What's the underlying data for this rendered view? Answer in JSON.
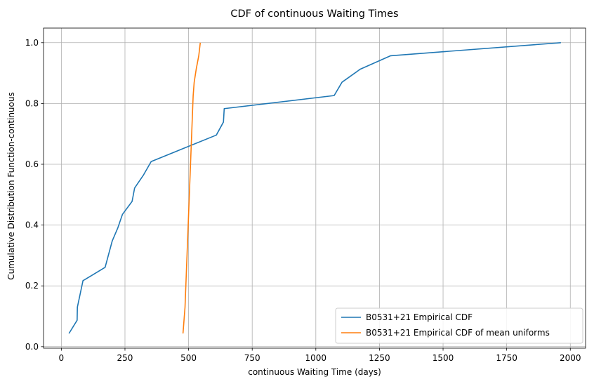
{
  "chart_data": {
    "type": "line",
    "title": "CDF of continuous Waiting Times",
    "xlabel": "continuous Waiting Time (days)",
    "ylabel": "Cumulative Distribution Function-continuous",
    "xlim": [
      -70,
      2060
    ],
    "ylim": [
      -0.005,
      1.048
    ],
    "xticks": [
      0,
      250,
      500,
      750,
      1000,
      1250,
      1500,
      1750,
      2000
    ],
    "yticks": [
      0.0,
      0.2,
      0.4,
      0.6,
      0.8,
      1.0
    ],
    "xtick_labels": [
      "0",
      "250",
      "500",
      "750",
      "1000",
      "1250",
      "1500",
      "1750",
      "2000"
    ],
    "ytick_labels": [
      "0.0",
      "0.2",
      "0.4",
      "0.6",
      "0.8",
      "1.0"
    ],
    "grid": true,
    "legend_position": "lower-right",
    "series": [
      {
        "name": "B0531+21 Empirical CDF",
        "color": "#1f77b4",
        "x": [
          30,
          62,
          63,
          85,
          172,
          200,
          222,
          240,
          278,
          288,
          323,
          353,
          609,
          637,
          640,
          1072,
          1103,
          1175,
          1294,
          1963
        ],
        "y": [
          0.0435,
          0.087,
          0.13,
          0.217,
          0.261,
          0.348,
          0.391,
          0.435,
          0.478,
          0.522,
          0.565,
          0.609,
          0.696,
          0.739,
          0.783,
          0.826,
          0.87,
          0.913,
          0.957,
          1.0
        ]
      },
      {
        "name": "B0531+21 Empirical CDF of mean uniforms",
        "color": "#ff7f0e",
        "x": [
          478,
          482,
          486,
          488,
          490,
          492,
          494,
          496,
          498,
          500,
          502,
          504,
          506,
          508,
          512,
          516,
          518,
          522,
          530,
          540,
          546
        ],
        "y": [
          0.0435,
          0.087,
          0.13,
          0.174,
          0.217,
          0.261,
          0.304,
          0.348,
          0.391,
          0.435,
          0.478,
          0.522,
          0.565,
          0.609,
          0.696,
          0.783,
          0.826,
          0.87,
          0.913,
          0.957,
          1.0
        ]
      }
    ]
  }
}
